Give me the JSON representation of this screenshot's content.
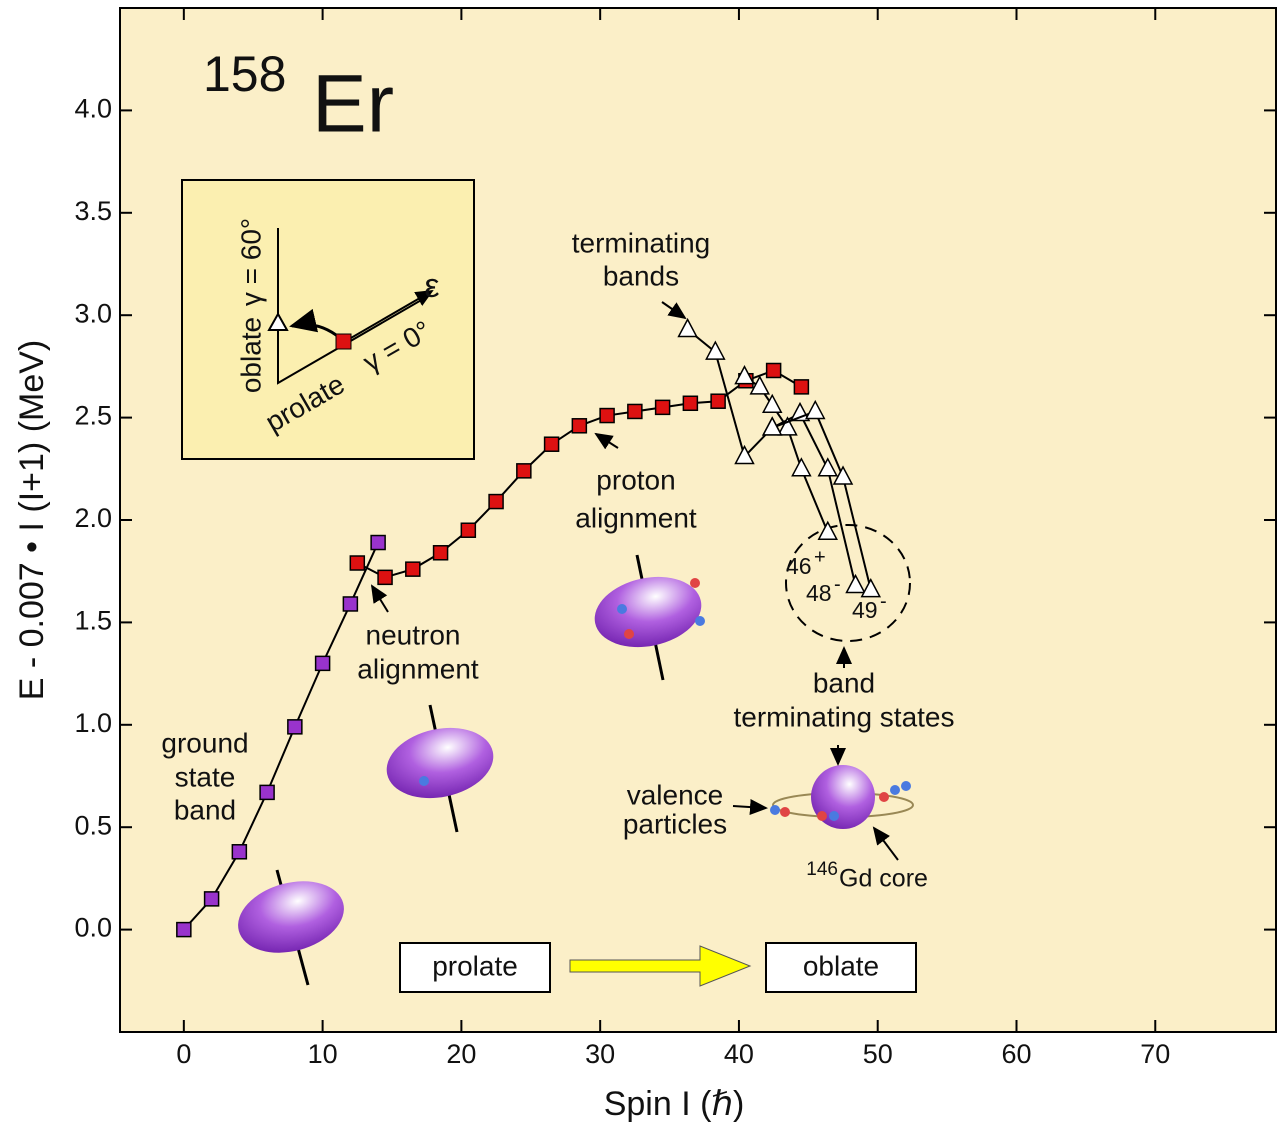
{
  "chart_data": {
    "type": "scatter-line",
    "title": {
      "mass": "158",
      "element": "Er"
    },
    "x_label": "Spin I (ℏ)",
    "y_label": "E - 0.007 • I (I+1) (MeV)",
    "xlim": [
      -4.6,
      78.7
    ],
    "ylim": [
      -0.5,
      4.5
    ],
    "xticks": [
      0,
      10,
      20,
      30,
      40,
      50,
      60,
      70
    ],
    "yticks": [
      {
        "value": 0,
        "label": "0.0"
      },
      {
        "value": 0.5,
        "label": "0.5"
      },
      {
        "value": 1,
        "label": "1.0"
      },
      {
        "value": 1.5,
        "label": "1.5"
      },
      {
        "value": 2,
        "label": "2.0"
      },
      {
        "value": 2.5,
        "label": "2.5"
      },
      {
        "value": 3,
        "label": "3.0"
      },
      {
        "value": 3.5,
        "label": "3.5"
      },
      {
        "value": 4,
        "label": "4.0"
      }
    ],
    "series": [
      {
        "marker": "square",
        "color": "#9933cc",
        "x": [
          0,
          2,
          4,
          6,
          8,
          10,
          12,
          14
        ],
        "values": [
          0,
          0.15,
          0.38,
          0.67,
          0.99,
          1.3,
          1.59,
          1.89
        ]
      },
      {
        "marker": "square",
        "color": "#dd1111",
        "x": [
          12.5,
          14.5,
          16.5,
          18.5,
          20.5,
          22.5,
          24.5,
          26.5,
          28.5,
          30.5,
          32.5,
          34.5,
          36.5,
          38.5,
          40.5,
          42.5,
          44.5
        ],
        "values": [
          1.79,
          1.72,
          1.76,
          1.84,
          1.95,
          2.09,
          2.24,
          2.37,
          2.46,
          2.51,
          2.53,
          2.55,
          2.57,
          2.58,
          2.68,
          2.73,
          2.65
        ]
      },
      {
        "marker": "triangle",
        "color": "#ffffff",
        "x": [
          36.3,
          38.3,
          40.4,
          42.4,
          44.4,
          46.4,
          48.4
        ],
        "values": [
          2.93,
          2.82,
          2.31,
          2.45,
          2.52,
          2.25,
          1.68
        ]
      },
      {
        "marker": "triangle",
        "color": "#ffffff",
        "x": [
          40.4,
          41.5,
          42.4,
          43.5,
          44.5,
          46.4
        ],
        "values": [
          2.7,
          2.65,
          2.56,
          2.45,
          2.25,
          1.94
        ]
      },
      {
        "marker": "triangle",
        "color": "#ffffff",
        "x": [
          42.4,
          45.5,
          47.5,
          49.5
        ],
        "values": [
          2.45,
          2.53,
          2.21,
          1.66
        ]
      }
    ],
    "annotations": [
      {
        "lines": [
          "terminating",
          "bands"
        ]
      },
      {
        "lines": [
          "proton",
          "alignment"
        ]
      },
      {
        "lines": [
          "neutron",
          "alignment"
        ]
      },
      {
        "lines": [
          "ground",
          "state",
          "band"
        ]
      },
      {
        "lines": [
          "band",
          "terminating states"
        ]
      },
      {
        "lines": [
          "valence",
          "particles"
        ]
      }
    ],
    "core_label": {
      "sup": "146",
      "text": "Gd core"
    },
    "state_labels": [
      {
        "text": "46",
        "sup": "+"
      },
      {
        "text": "48",
        "sup": "-"
      },
      {
        "text": "49",
        "sup": "-"
      }
    ],
    "shape_boxes": [
      "prolate",
      "oblate"
    ],
    "inset": {
      "oblate": "oblate",
      "gamma60": "γ = 60°",
      "prolate": "prolate",
      "gamma0": "γ = 0°",
      "epsilon": "ε"
    }
  }
}
